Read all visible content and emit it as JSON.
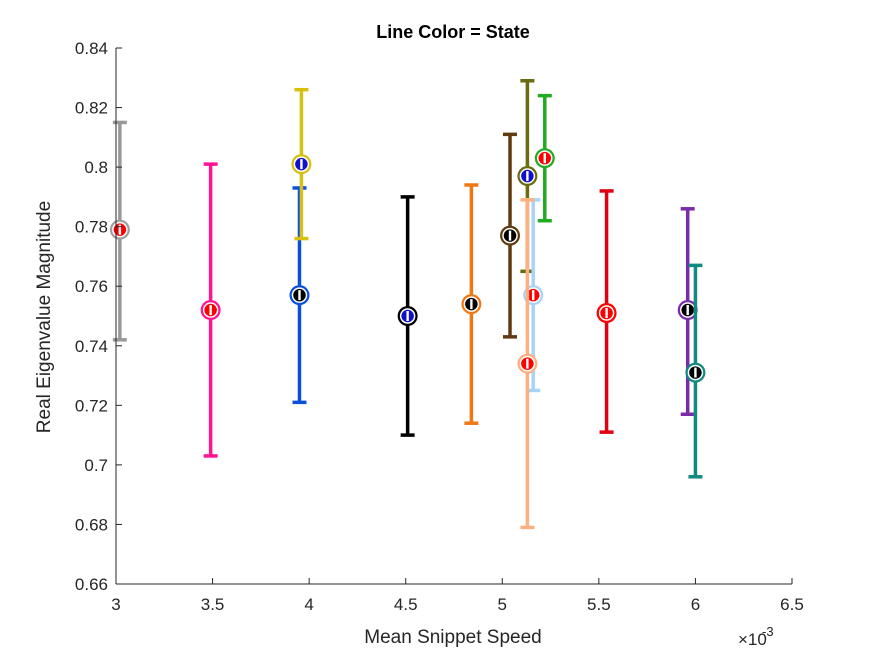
{
  "chart_data": {
    "type": "scatter",
    "title": "Line Color = State",
    "xlabel": "Mean Snippet Speed",
    "ylabel": "Real Eigenvalue Magnitude",
    "x_exponent_label": "×10",
    "x_exponent_power": "-3",
    "xlim": [
      3,
      6.5
    ],
    "ylim": [
      0.66,
      0.84
    ],
    "xticks": [
      "3",
      "3.5",
      "4",
      "4.5",
      "5",
      "5.5",
      "6",
      "6.5"
    ],
    "xtick_values": [
      3,
      3.5,
      4,
      4.5,
      5,
      5.5,
      6,
      6.5
    ],
    "yticks": [
      "0.66",
      "0.68",
      "0.7",
      "0.72",
      "0.74",
      "0.76",
      "0.78",
      "0.8",
      "0.82",
      "0.84"
    ],
    "ytick_values": [
      0.66,
      0.68,
      0.7,
      0.72,
      0.74,
      0.76,
      0.78,
      0.8,
      0.82,
      0.84
    ],
    "grid": false,
    "points": [
      {
        "x": 3.02,
        "y": 0.779,
        "low": 0.742,
        "high": 0.815,
        "line_color": "#999999",
        "marker_color": "#a0a0a0",
        "inner_color": "#ff0000"
      },
      {
        "x": 3.49,
        "y": 0.752,
        "low": 0.703,
        "high": 0.801,
        "line_color": "#ff1493",
        "marker_color": "#ff1493",
        "inner_color": "#ff0000"
      },
      {
        "x": 3.95,
        "y": 0.757,
        "low": 0.721,
        "high": 0.793,
        "line_color": "#0b50dc",
        "marker_color": "#0b50dc",
        "inner_color": "#000000"
      },
      {
        "x": 3.96,
        "y": 0.801,
        "low": 0.776,
        "high": 0.826,
        "line_color": "#d8c010",
        "marker_color": "#d8c010",
        "inner_color": "#1111cc"
      },
      {
        "x": 4.51,
        "y": 0.75,
        "low": 0.71,
        "high": 0.79,
        "line_color": "#000000",
        "marker_color": "#000000",
        "inner_color": "#1111cc"
      },
      {
        "x": 4.84,
        "y": 0.754,
        "low": 0.714,
        "high": 0.794,
        "line_color": "#f07814",
        "marker_color": "#f07814",
        "inner_color": "#000000"
      },
      {
        "x": 5.04,
        "y": 0.777,
        "low": 0.743,
        "high": 0.811,
        "line_color": "#603b10",
        "marker_color": "#603b10",
        "inner_color": "#000000"
      },
      {
        "x": 5.13,
        "y": 0.797,
        "low": 0.765,
        "high": 0.829,
        "line_color": "#6b6b10",
        "marker_color": "#6b6b10",
        "inner_color": "#1111cc"
      },
      {
        "x": 5.16,
        "y": 0.757,
        "low": 0.725,
        "high": 0.789,
        "line_color": "#a8d4f8",
        "marker_color": "#a8d4f8",
        "inner_color": "#ff0000"
      },
      {
        "x": 5.13,
        "y": 0.734,
        "low": 0.679,
        "high": 0.789,
        "line_color": "#ffb080",
        "marker_color": "#ffb080",
        "inner_color": "#ff0000"
      },
      {
        "x": 5.22,
        "y": 0.803,
        "low": 0.782,
        "high": 0.824,
        "line_color": "#22aa22",
        "marker_color": "#22aa22",
        "inner_color": "#ff0000"
      },
      {
        "x": 5.54,
        "y": 0.751,
        "low": 0.711,
        "high": 0.792,
        "line_color": "#e00010",
        "marker_color": "#ff0000",
        "inner_color": "#ff0000"
      },
      {
        "x": 5.96,
        "y": 0.752,
        "low": 0.717,
        "high": 0.786,
        "line_color": "#7a2ca8",
        "marker_color": "#7a2ca8",
        "inner_color": "#000000"
      },
      {
        "x": 6.0,
        "y": 0.731,
        "low": 0.696,
        "high": 0.767,
        "line_color": "#118a80",
        "marker_color": "#118a80",
        "inner_color": "#000000"
      }
    ]
  }
}
